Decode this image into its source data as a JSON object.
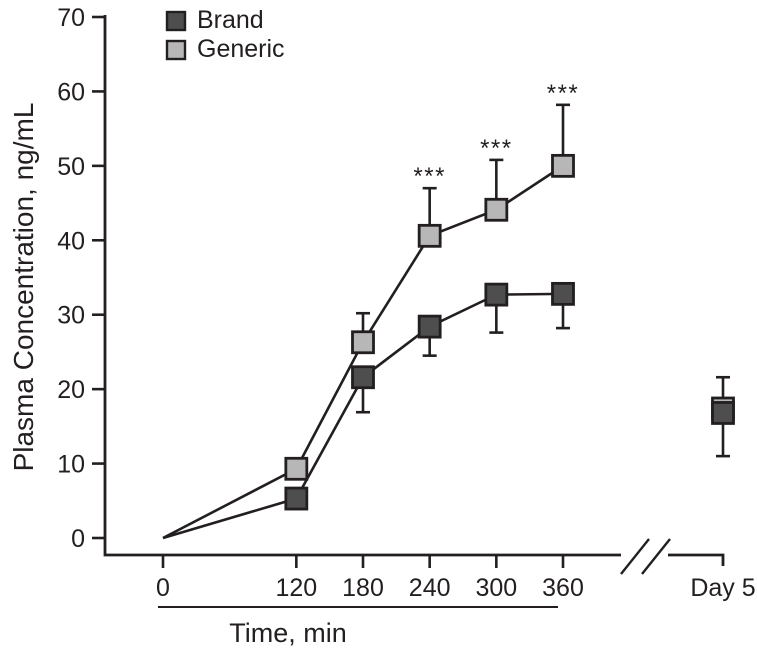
{
  "colors": {
    "background": "#ffffff",
    "text": "#231f20",
    "line": "#231f20",
    "brand_fill": "#4e4e4e",
    "generic_fill": "#b7b7b7"
  },
  "chart_data": {
    "type": "line",
    "title": "",
    "xlabel": "Time, min",
    "ylabel": "Plasma Concentration, ng/mL",
    "ylim": [
      0,
      70
    ],
    "yticks": [
      0,
      10,
      20,
      30,
      40,
      50,
      60,
      70
    ],
    "xticks": [
      0,
      120,
      180,
      240,
      300,
      360
    ],
    "x_axis_break_after": 360,
    "day5_label": "Day 5",
    "grid": false,
    "legend_position": "top-left-inside",
    "series": [
      {
        "name": "Brand",
        "marker": "square",
        "marker_fill": "#4e4e4e",
        "x": [
          0,
          120,
          180,
          240,
          300,
          360
        ],
        "y": [
          0,
          5.3,
          21.6,
          28.4,
          32.7,
          32.8
        ],
        "err_up": [
          0,
          0,
          0,
          0,
          0,
          0
        ],
        "err_down": [
          0,
          0,
          4.7,
          3.9,
          5.1,
          4.6
        ],
        "significance": [
          "",
          "",
          "",
          "",
          "",
          ""
        ],
        "day5": {
          "y": 16.8,
          "err_up": 4.8,
          "err_down": 5.8,
          "hidden_behind_brand": false
        }
      },
      {
        "name": "Generic",
        "marker": "square",
        "marker_fill": "#b7b7b7",
        "x": [
          0,
          120,
          180,
          240,
          300,
          360
        ],
        "y": [
          0,
          9.3,
          26.3,
          40.6,
          44.1,
          50.0
        ],
        "err_up": [
          0,
          0,
          3.9,
          6.4,
          6.7,
          8.2
        ],
        "err_down": [
          0,
          0,
          0,
          0,
          0,
          0
        ],
        "significance": [
          "",
          "",
          "",
          "***",
          "***",
          "***"
        ],
        "day5": {
          "y": 17.4,
          "err_up": 0,
          "err_down": 0,
          "hidden_behind_brand": true
        }
      }
    ]
  }
}
